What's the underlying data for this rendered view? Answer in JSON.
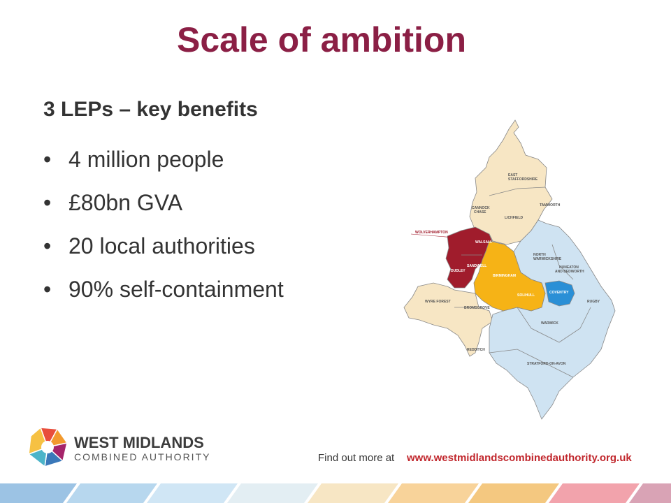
{
  "header": {
    "title": "Scale of ambition"
  },
  "subtitle": "3 LEPs – key benefits",
  "bullets": [
    "4 million people",
    "£80bn GVA",
    "20 local authorities",
    "90% self-containment"
  ],
  "map": {
    "labels": [
      [
        "EAST",
        "STAFFORDSHIRE"
      ],
      [
        "TAMWORTH"
      ],
      [
        "CANNOCK",
        "CHASE"
      ],
      [
        "LICHFIELD"
      ],
      [
        "WOLVERHAMPTON"
      ],
      [
        "WALSALL"
      ],
      [
        "NORTH",
        "WARWICKSHIRE"
      ],
      [
        "NUNEATON",
        "AND BEDWORTH"
      ],
      [
        "SANDWELL"
      ],
      [
        "DUDLEY"
      ],
      [
        "BIRMINGHAM"
      ],
      [
        "SOLIHULL"
      ],
      [
        "COVENTRY"
      ],
      [
        "RUGBY"
      ],
      [
        "WYRE FOREST"
      ],
      [
        "BROMSGROVE"
      ],
      [
        "WARWICK"
      ],
      [
        "REDDITCH"
      ],
      [
        "STRATFORD-ON-AVON"
      ]
    ]
  },
  "logo": {
    "line1": "WEST MIDLANDS",
    "line2": "COMBINED AUTHORITY"
  },
  "footer": {
    "prefix": "Find out more at",
    "url": "www.westmidlandscombinedauthority.org.uk"
  }
}
